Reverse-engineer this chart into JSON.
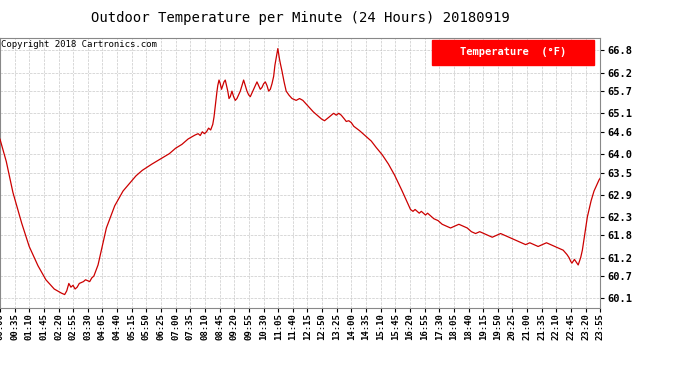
{
  "title": "Outdoor Temperature per Minute (24 Hours) 20180919",
  "copyright_text": "Copyright 2018 Cartronics.com",
  "legend_label": "Temperature  (°F)",
  "line_color": "#cc0000",
  "background_color": "#ffffff",
  "grid_color": "#bbbbbb",
  "yticks": [
    60.1,
    60.7,
    61.2,
    61.8,
    62.3,
    62.9,
    63.5,
    64.0,
    64.6,
    65.1,
    65.7,
    66.2,
    66.8
  ],
  "ylim": [
    59.85,
    67.15
  ],
  "xtick_labels": [
    "00:00",
    "00:35",
    "01:10",
    "01:45",
    "02:20",
    "02:55",
    "03:30",
    "04:05",
    "04:40",
    "05:15",
    "05:50",
    "06:25",
    "07:00",
    "07:35",
    "08:10",
    "08:45",
    "09:20",
    "09:55",
    "10:30",
    "11:05",
    "11:40",
    "12:15",
    "12:50",
    "13:25",
    "14:00",
    "14:35",
    "15:10",
    "15:45",
    "16:20",
    "16:55",
    "17:30",
    "18:05",
    "18:40",
    "19:15",
    "19:50",
    "20:25",
    "21:00",
    "21:35",
    "22:10",
    "22:45",
    "23:20",
    "23:55"
  ],
  "keypoints": [
    [
      0,
      64.4
    ],
    [
      15,
      63.8
    ],
    [
      30,
      63.0
    ],
    [
      50,
      62.2
    ],
    [
      70,
      61.5
    ],
    [
      90,
      61.0
    ],
    [
      110,
      60.6
    ],
    [
      130,
      60.35
    ],
    [
      145,
      60.25
    ],
    [
      155,
      60.2
    ],
    [
      160,
      60.3
    ],
    [
      165,
      60.5
    ],
    [
      170,
      60.4
    ],
    [
      175,
      60.45
    ],
    [
      180,
      60.35
    ],
    [
      185,
      60.4
    ],
    [
      190,
      60.5
    ],
    [
      200,
      60.55
    ],
    [
      205,
      60.6
    ],
    [
      215,
      60.55
    ],
    [
      220,
      60.65
    ],
    [
      225,
      60.7
    ],
    [
      235,
      61.0
    ],
    [
      245,
      61.5
    ],
    [
      255,
      62.0
    ],
    [
      265,
      62.3
    ],
    [
      275,
      62.6
    ],
    [
      285,
      62.8
    ],
    [
      295,
      63.0
    ],
    [
      310,
      63.2
    ],
    [
      325,
      63.4
    ],
    [
      340,
      63.55
    ],
    [
      360,
      63.7
    ],
    [
      375,
      63.8
    ],
    [
      390,
      63.9
    ],
    [
      405,
      64.0
    ],
    [
      420,
      64.15
    ],
    [
      435,
      64.25
    ],
    [
      450,
      64.4
    ],
    [
      465,
      64.5
    ],
    [
      475,
      64.55
    ],
    [
      480,
      64.5
    ],
    [
      485,
      64.6
    ],
    [
      490,
      64.55
    ],
    [
      495,
      64.6
    ],
    [
      500,
      64.7
    ],
    [
      505,
      64.65
    ],
    [
      510,
      64.8
    ],
    [
      513,
      65.0
    ],
    [
      516,
      65.3
    ],
    [
      519,
      65.6
    ],
    [
      522,
      65.85
    ],
    [
      525,
      66.0
    ],
    [
      528,
      65.9
    ],
    [
      531,
      65.75
    ],
    [
      534,
      65.85
    ],
    [
      537,
      65.95
    ],
    [
      540,
      66.0
    ],
    [
      543,
      65.85
    ],
    [
      546,
      65.7
    ],
    [
      549,
      65.5
    ],
    [
      552,
      65.55
    ],
    [
      556,
      65.7
    ],
    [
      560,
      65.55
    ],
    [
      564,
      65.45
    ],
    [
      568,
      65.5
    ],
    [
      572,
      65.6
    ],
    [
      576,
      65.7
    ],
    [
      580,
      65.85
    ],
    [
      584,
      66.0
    ],
    [
      588,
      65.85
    ],
    [
      592,
      65.7
    ],
    [
      596,
      65.6
    ],
    [
      600,
      65.55
    ],
    [
      604,
      65.65
    ],
    [
      608,
      65.75
    ],
    [
      612,
      65.85
    ],
    [
      616,
      65.95
    ],
    [
      620,
      65.85
    ],
    [
      624,
      65.75
    ],
    [
      628,
      65.8
    ],
    [
      632,
      65.9
    ],
    [
      636,
      65.95
    ],
    [
      640,
      65.85
    ],
    [
      644,
      65.7
    ],
    [
      648,
      65.75
    ],
    [
      652,
      65.9
    ],
    [
      656,
      66.1
    ],
    [
      659,
      66.4
    ],
    [
      662,
      66.6
    ],
    [
      664,
      66.75
    ],
    [
      666,
      66.85
    ],
    [
      668,
      66.7
    ],
    [
      671,
      66.5
    ],
    [
      675,
      66.3
    ],
    [
      680,
      66.0
    ],
    [
      686,
      65.7
    ],
    [
      692,
      65.6
    ],
    [
      700,
      65.5
    ],
    [
      710,
      65.45
    ],
    [
      718,
      65.5
    ],
    [
      726,
      65.45
    ],
    [
      734,
      65.35
    ],
    [
      742,
      65.25
    ],
    [
      750,
      65.15
    ],
    [
      760,
      65.05
    ],
    [
      770,
      64.95
    ],
    [
      778,
      64.9
    ],
    [
      786,
      64.97
    ],
    [
      794,
      65.05
    ],
    [
      800,
      65.1
    ],
    [
      806,
      65.05
    ],
    [
      812,
      65.1
    ],
    [
      818,
      65.05
    ],
    [
      824,
      64.97
    ],
    [
      830,
      64.88
    ],
    [
      836,
      64.9
    ],
    [
      842,
      64.85
    ],
    [
      848,
      64.75
    ],
    [
      854,
      64.7
    ],
    [
      860,
      64.65
    ],
    [
      870,
      64.55
    ],
    [
      880,
      64.45
    ],
    [
      890,
      64.35
    ],
    [
      900,
      64.2
    ],
    [
      915,
      64.0
    ],
    [
      930,
      63.75
    ],
    [
      945,
      63.45
    ],
    [
      960,
      63.1
    ],
    [
      970,
      62.85
    ],
    [
      978,
      62.65
    ],
    [
      984,
      62.5
    ],
    [
      990,
      62.45
    ],
    [
      995,
      62.5
    ],
    [
      1000,
      62.45
    ],
    [
      1005,
      62.4
    ],
    [
      1010,
      62.45
    ],
    [
      1015,
      62.4
    ],
    [
      1020,
      62.35
    ],
    [
      1025,
      62.4
    ],
    [
      1030,
      62.35
    ],
    [
      1035,
      62.3
    ],
    [
      1040,
      62.25
    ],
    [
      1050,
      62.2
    ],
    [
      1060,
      62.1
    ],
    [
      1070,
      62.05
    ],
    [
      1080,
      62.0
    ],
    [
      1090,
      62.05
    ],
    [
      1100,
      62.1
    ],
    [
      1110,
      62.05
    ],
    [
      1120,
      62.0
    ],
    [
      1130,
      61.9
    ],
    [
      1140,
      61.85
    ],
    [
      1150,
      61.9
    ],
    [
      1160,
      61.85
    ],
    [
      1170,
      61.8
    ],
    [
      1180,
      61.75
    ],
    [
      1190,
      61.8
    ],
    [
      1200,
      61.85
    ],
    [
      1210,
      61.8
    ],
    [
      1220,
      61.75
    ],
    [
      1230,
      61.7
    ],
    [
      1240,
      61.65
    ],
    [
      1250,
      61.6
    ],
    [
      1260,
      61.55
    ],
    [
      1270,
      61.6
    ],
    [
      1280,
      61.55
    ],
    [
      1290,
      61.5
    ],
    [
      1300,
      61.55
    ],
    [
      1310,
      61.6
    ],
    [
      1320,
      61.55
    ],
    [
      1330,
      61.5
    ],
    [
      1340,
      61.45
    ],
    [
      1350,
      61.4
    ],
    [
      1358,
      61.3
    ],
    [
      1364,
      61.2
    ],
    [
      1368,
      61.1
    ],
    [
      1371,
      61.05
    ],
    [
      1374,
      61.1
    ],
    [
      1377,
      61.15
    ],
    [
      1380,
      61.1
    ],
    [
      1383,
      61.05
    ],
    [
      1386,
      61.0
    ],
    [
      1389,
      61.1
    ],
    [
      1392,
      61.2
    ],
    [
      1396,
      61.4
    ],
    [
      1400,
      61.7
    ],
    [
      1404,
      62.0
    ],
    [
      1408,
      62.3
    ],
    [
      1412,
      62.5
    ],
    [
      1416,
      62.7
    ],
    [
      1420,
      62.85
    ],
    [
      1424,
      63.0
    ],
    [
      1428,
      63.1
    ],
    [
      1432,
      63.2
    ],
    [
      1436,
      63.3
    ],
    [
      1439,
      63.35
    ]
  ]
}
